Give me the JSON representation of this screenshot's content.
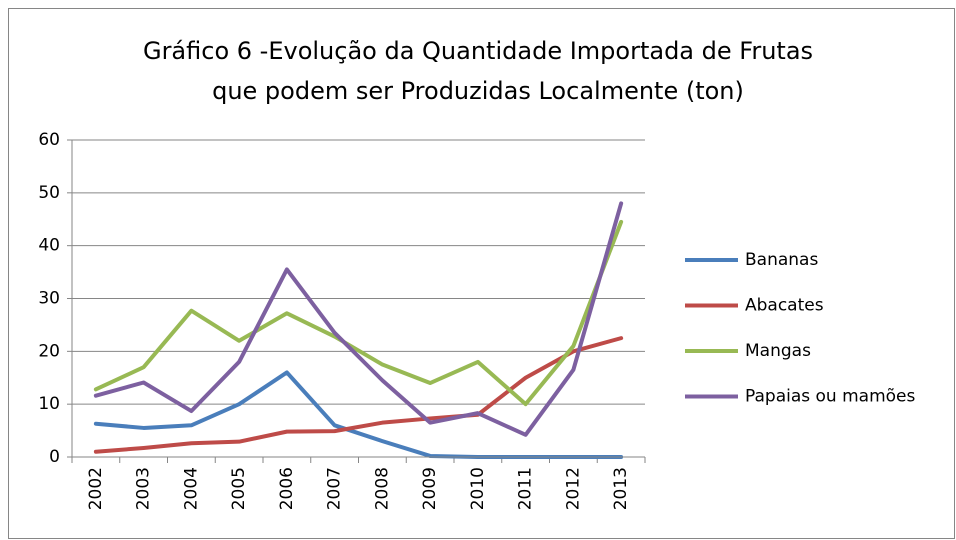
{
  "chart_data": {
    "type": "line",
    "title": [
      "Gráfico 6 -Evolução da Quantidade Importada de Frutas",
      "que podem ser Produzidas Localmente (ton)"
    ],
    "categories": [
      "2002",
      "2003",
      "2004",
      "2005",
      "2006",
      "2007",
      "2008",
      "2009",
      "2010",
      "2011",
      "2012",
      "2013"
    ],
    "series": [
      {
        "name": "Bananas",
        "color": "#4a7ebb",
        "values": [
          6.3,
          5.5,
          6,
          10,
          16,
          6,
          3,
          0.2,
          0,
          0,
          0,
          0
        ]
      },
      {
        "name": "Abacates",
        "color": "#be4b48",
        "values": [
          1,
          1.7,
          2.6,
          2.9,
          4.8,
          4.9,
          6.5,
          7.3,
          8,
          15,
          20,
          22.5
        ]
      },
      {
        "name": "Mangas",
        "color": "#98b954",
        "values": [
          12.8,
          17,
          27.7,
          22,
          27.2,
          22.8,
          17.5,
          14,
          18,
          10,
          21,
          44.5
        ]
      },
      {
        "name": "Papaias ou mamões",
        "color": "#7d60a0",
        "values": [
          11.6,
          14.1,
          8.7,
          18,
          35.5,
          23.5,
          14.5,
          6.5,
          8.3,
          4.2,
          16.5,
          48
        ]
      }
    ],
    "ylim": [
      0,
      60
    ],
    "yticks": [
      0,
      10,
      20,
      30,
      40,
      50,
      60
    ],
    "grid": true,
    "legend": "right"
  }
}
